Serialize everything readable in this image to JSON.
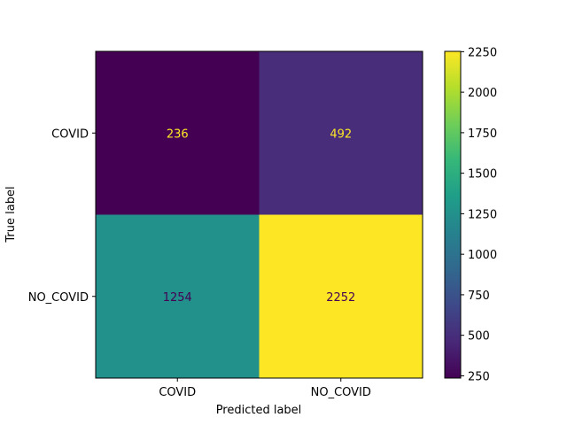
{
  "chart_data": {
    "type": "heatmap",
    "xlabel": "Predicted label",
    "ylabel": "True label",
    "x_categories": [
      "COVID",
      "NO_COVID"
    ],
    "y_categories": [
      "COVID",
      "NO_COVID"
    ],
    "values": [
      [
        236,
        492
      ],
      [
        1254,
        2252
      ]
    ],
    "colormap": "viridis",
    "colorbar": {
      "range": [
        236,
        2252
      ],
      "ticks": [
        250,
        500,
        750,
        1000,
        1250,
        1500,
        1750,
        2000,
        2250
      ]
    },
    "text_colors": {
      "on_dark": "#fde725",
      "on_light": "#440154"
    }
  }
}
